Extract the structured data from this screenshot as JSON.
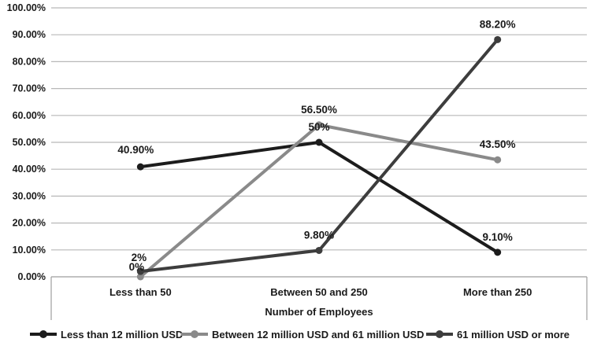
{
  "chart_data": {
    "type": "line",
    "title": "",
    "xlabel": "Number of Employees",
    "ylabel": "",
    "ylim": [
      0,
      100
    ],
    "ytick_step": 10,
    "ytick_labels": [
      "0.00%",
      "10.00%",
      "20.00%",
      "30.00%",
      "40.00%",
      "50.00%",
      "60.00%",
      "70.00%",
      "80.00%",
      "90.00%",
      "100.00%"
    ],
    "grid": "horizontal",
    "legend_position": "bottom",
    "categories": [
      "Less than 50",
      "Between 50 and 250",
      "More than 250"
    ],
    "series": [
      {
        "name": "Less than 12 million USD",
        "values": [
          40.9,
          50,
          9.1
        ],
        "labels": [
          "40.90%",
          "50%",
          "9.10%"
        ],
        "color": "#1c1c1c"
      },
      {
        "name": "Between 12 million USD and 61 million USD",
        "values": [
          0,
          56.5,
          43.5
        ],
        "labels": [
          "0%",
          "56.50%",
          "43.50%"
        ],
        "color": "#8a8a8a"
      },
      {
        "name": "61 million USD or more",
        "values": [
          2,
          9.8,
          88.2
        ],
        "labels": [
          "2%",
          "9.80%",
          "88.20%"
        ],
        "color": "#3d3d3d"
      }
    ],
    "colors": {
      "gridline": "#b8b8b8",
      "axis": "#9e9e9e",
      "label": "#1a1a1a"
    }
  }
}
